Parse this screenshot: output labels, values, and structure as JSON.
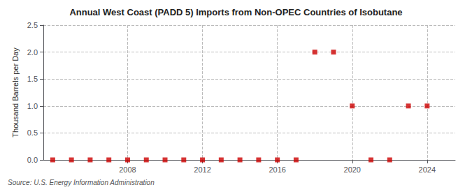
{
  "chart_data": {
    "type": "scatter",
    "title": "Annual West Coast (PADD 5) Imports from Non-OPEC Countries of Isobutane",
    "ylabel": "Thousand Barrels per Day",
    "annotations": [
      "Source: U.S. Energy Information Administration"
    ],
    "x": [
      2004,
      2005,
      2006,
      2007,
      2008,
      2009,
      2010,
      2011,
      2012,
      2013,
      2014,
      2015,
      2016,
      2017,
      2018,
      2019,
      2020,
      2021,
      2022,
      2023,
      2024
    ],
    "values": [
      0,
      0,
      0,
      0,
      0,
      0,
      0,
      0,
      0,
      0,
      0,
      0,
      0,
      0,
      2,
      2,
      1,
      0,
      0,
      1,
      1
    ],
    "color": "#cc0000",
    "marker": "square",
    "xlim": [
      2003.5,
      2025.5
    ],
    "xticks": [
      2008,
      2012,
      2016,
      2020,
      2024
    ],
    "ylim": [
      0,
      2.5
    ],
    "yticks": [
      {
        "value": 0,
        "label": "0.0"
      },
      0.5,
      {
        "value": 1,
        "label": "1.0"
      },
      1.5,
      {
        "value": 2,
        "label": "2.0"
      },
      2.5
    ],
    "grid": true
  }
}
